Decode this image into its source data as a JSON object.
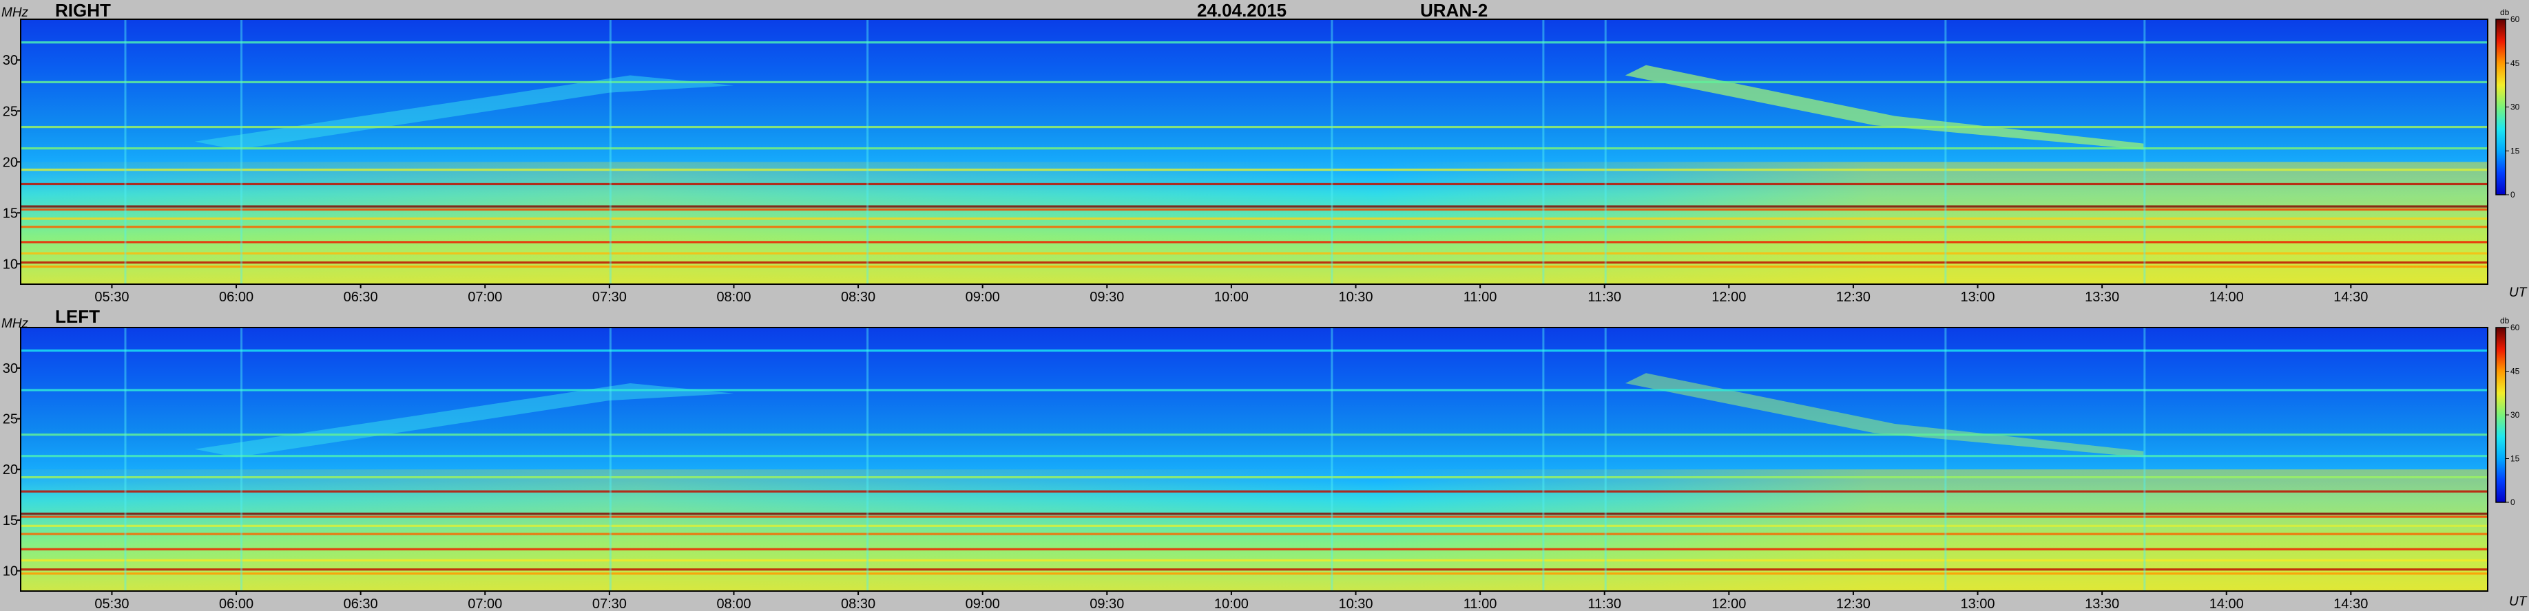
{
  "header": {
    "date": "24.04.2015",
    "instrument": "URAN-2"
  },
  "colors": {
    "background": "#c0c0c0",
    "colormap": [
      "#0000c8",
      "#0040ff",
      "#00a8ff",
      "#1ee6f0",
      "#7af27a",
      "#f2ee2a",
      "#ff9a00",
      "#ee1a00",
      "#600000"
    ]
  },
  "chart_data": [
    {
      "type": "heatmap",
      "title": "RIGHT",
      "xlabel": "UT",
      "ylabel": "MHz",
      "x_unit": "UT",
      "xlim": [
        "05:08",
        "15:03"
      ],
      "ylim": [
        8,
        34
      ],
      "x_ticks": [
        "05:30",
        "06:00",
        "06:30",
        "07:00",
        "07:30",
        "08:00",
        "08:30",
        "09:00",
        "09:30",
        "10:00",
        "10:30",
        "11:00",
        "11:30",
        "12:00",
        "12:30",
        "13:00",
        "13:30",
        "14:00",
        "14:30"
      ],
      "y_ticks": [
        10,
        15,
        20,
        25,
        30
      ],
      "colorbar": {
        "label": "db",
        "range": [
          0,
          60
        ],
        "ticks": [
          0,
          15,
          30,
          45,
          60
        ]
      },
      "grid": false
    },
    {
      "type": "heatmap",
      "title": "LEFT",
      "xlabel": "UT",
      "ylabel": "MHz",
      "x_unit": "UT",
      "xlim": [
        "05:08",
        "15:03"
      ],
      "ylim": [
        8,
        34
      ],
      "x_ticks": [
        "05:30",
        "06:00",
        "06:30",
        "07:00",
        "07:30",
        "08:00",
        "08:30",
        "09:00",
        "09:30",
        "10:00",
        "10:30",
        "11:00",
        "11:30",
        "12:00",
        "12:30",
        "13:00",
        "13:30",
        "14:00",
        "14:30"
      ],
      "y_ticks": [
        10,
        15,
        20,
        25,
        30
      ],
      "colorbar": {
        "label": "db",
        "range": [
          0,
          60
        ],
        "ticks": [
          0,
          15,
          30,
          45,
          60
        ]
      },
      "grid": false
    }
  ]
}
